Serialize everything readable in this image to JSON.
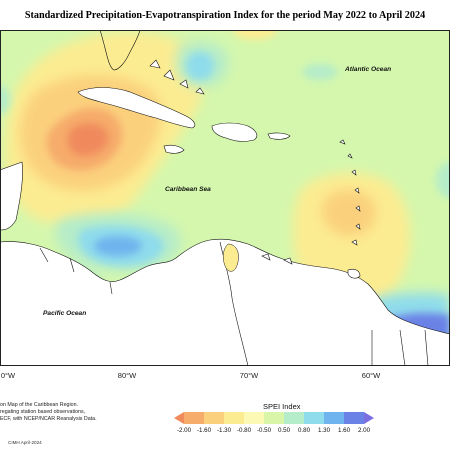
{
  "title": "Standardized Precipitation-Evapotranspiration Index for the period May 2022 to April 2024",
  "labels": {
    "atlantic": "Atlantic Ocean",
    "caribbean": "Caribbean Sea",
    "pacific": "Pacific Ocean"
  },
  "longitudes": [
    "0°W",
    "80°W",
    "70°W",
    "60°W"
  ],
  "notes": [
    "on Map of the Caribbean Region.",
    "regating station based observations,",
    "ECF, with NCEP/NCAR Reanalysis Data."
  ],
  "credit": "CIMH April-2024",
  "legend": {
    "title": "SPEI Index",
    "ticks": [
      "-2.00",
      "-1.60",
      "-1.30",
      "-0.80",
      "-0.50",
      "0.50",
      "0.80",
      "1.30",
      "1.60",
      "2.00"
    ],
    "colors": [
      "#f08a5d",
      "#f6ac6b",
      "#fbd07d",
      "#fcec91",
      "#fbf9b4",
      "#d9f5a8",
      "#b5ecc9",
      "#8fdcec",
      "#6fb4ee",
      "#6a82e6",
      "#7a6fe0"
    ]
  },
  "colors": {
    "ocean_base": "#d4f7ad",
    "land": "#ffffff",
    "coast": "#111111",
    "dry_strong": "#f08a5d",
    "dry_moderate": "#f6ac6b",
    "dry_mild": "#fbd07d",
    "near_normal_dry": "#fcec91",
    "wet_mild": "#b5ecc9",
    "wet_moderate": "#8fdcec",
    "wet_strong": "#6a82e6",
    "wet_extreme": "#7a6fe0"
  }
}
